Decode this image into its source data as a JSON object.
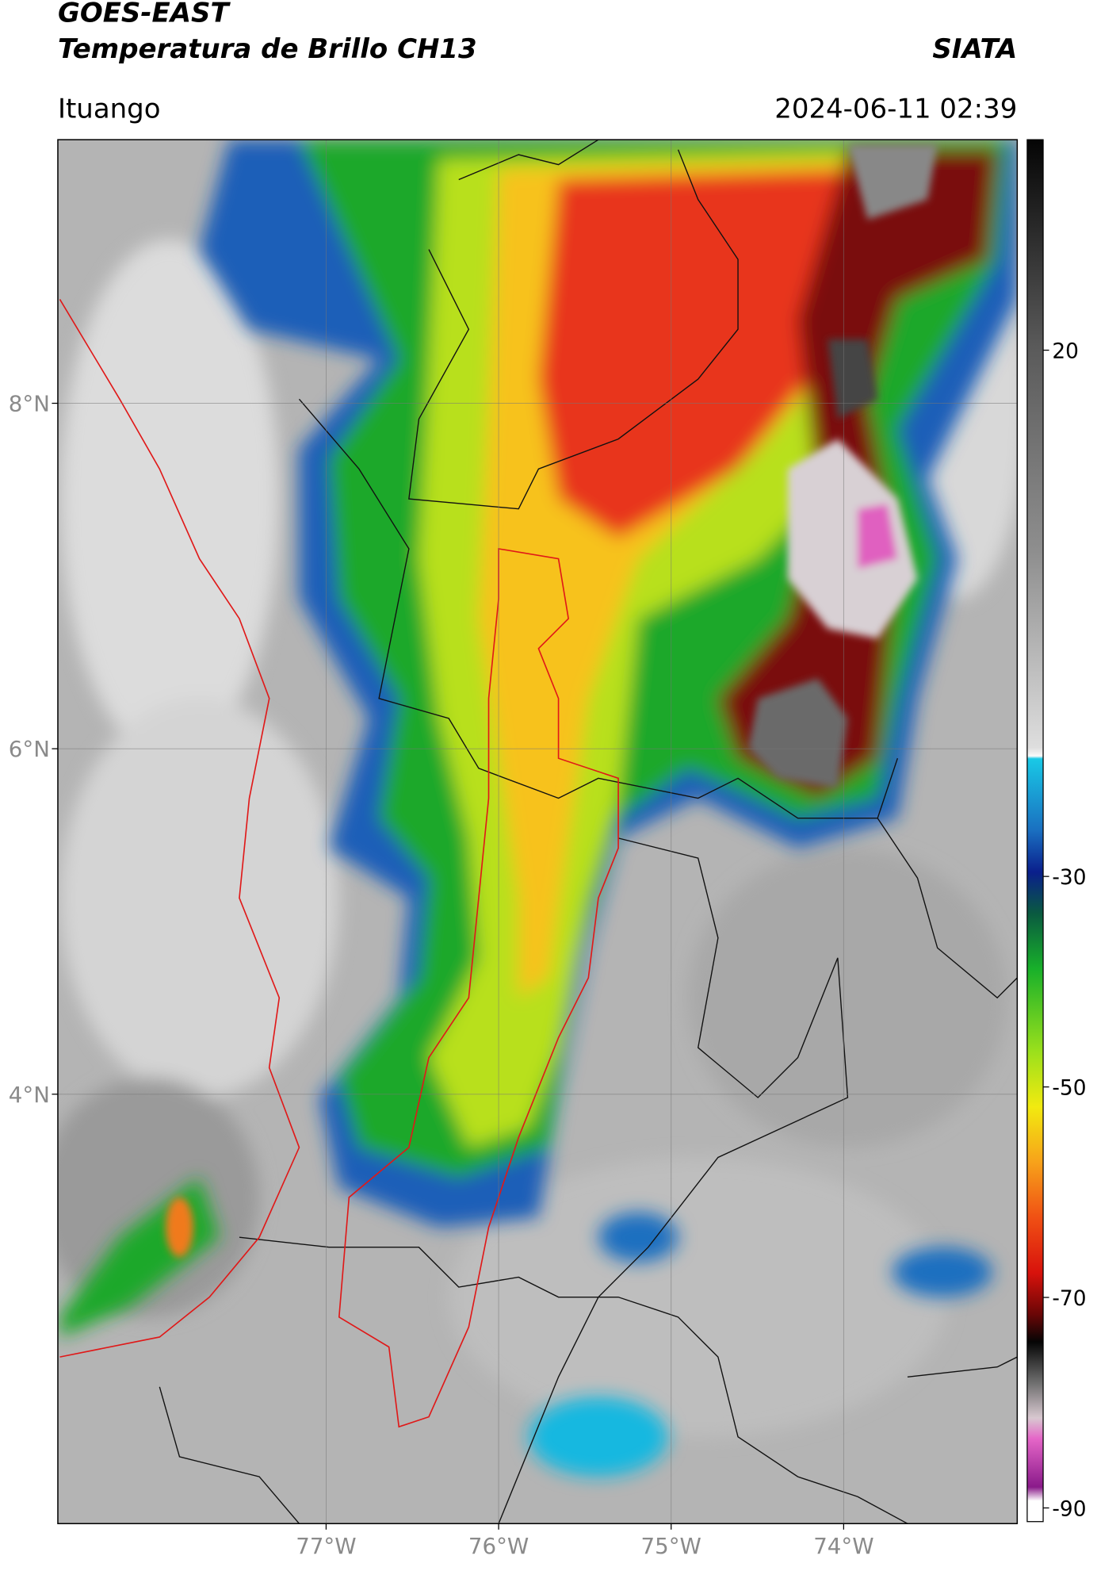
{
  "header": {
    "title": "GOES-EAST",
    "subtitle": "Temperatura de Brillo CH13",
    "organization": "SIATA",
    "location": "Ituango",
    "datetime": "2024-06-11 02:39"
  },
  "map": {
    "lon_range": [
      -78.555,
      -72.994
    ],
    "lat_range": [
      1.514,
      9.526
    ],
    "lat_ticks": [
      {
        "value": 8,
        "label": "8°N"
      },
      {
        "value": 6,
        "label": "6°N"
      },
      {
        "value": 4,
        "label": "4°N"
      }
    ],
    "lon_ticks": [
      {
        "value": -77,
        "label": "77°W"
      },
      {
        "value": -76,
        "label": "76°W"
      },
      {
        "value": -75,
        "label": "75°W"
      },
      {
        "value": -74,
        "label": "74°W"
      }
    ],
    "grid": true
  },
  "colorbar": {
    "range": [
      -91.3,
      40
    ],
    "ticks": [
      20,
      -30,
      -50,
      -70,
      -90
    ]
  }
}
